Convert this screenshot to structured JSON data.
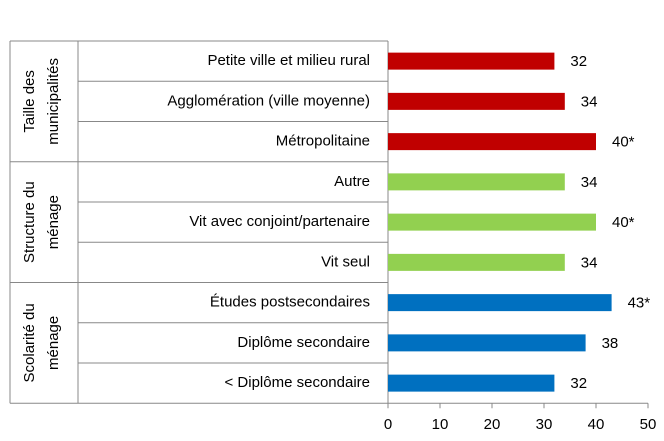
{
  "chart_data": {
    "type": "bar",
    "orientation": "horizontal",
    "xlim": [
      0,
      50
    ],
    "xticks": [
      0,
      10,
      20,
      30,
      40,
      50
    ],
    "groups": [
      {
        "label": [
          "Taille des",
          "municipalités"
        ],
        "color": "#c00000",
        "categories": [
          "Petite ville et milieu rural",
          "Agglomération (ville moyenne)",
          "Métropolitaine"
        ],
        "values": [
          32,
          34,
          40
        ],
        "value_labels": [
          "32",
          "34",
          "40*"
        ]
      },
      {
        "label": [
          "Structure du",
          "ménage"
        ],
        "color": "#92d050",
        "categories": [
          "Autre",
          "Vit avec conjoint/partenaire",
          "Vit seul"
        ],
        "values": [
          34,
          40,
          34
        ],
        "value_labels": [
          "34",
          "40*",
          "34"
        ]
      },
      {
        "label": [
          "Scolarité du",
          "ménage"
        ],
        "color": "#0070c0",
        "categories": [
          "Études postsecondaires",
          "Diplôme secondaire",
          "< Diplôme secondaire"
        ],
        "values": [
          43,
          38,
          32
        ],
        "value_labels": [
          "43*",
          "38",
          "32"
        ]
      }
    ]
  }
}
